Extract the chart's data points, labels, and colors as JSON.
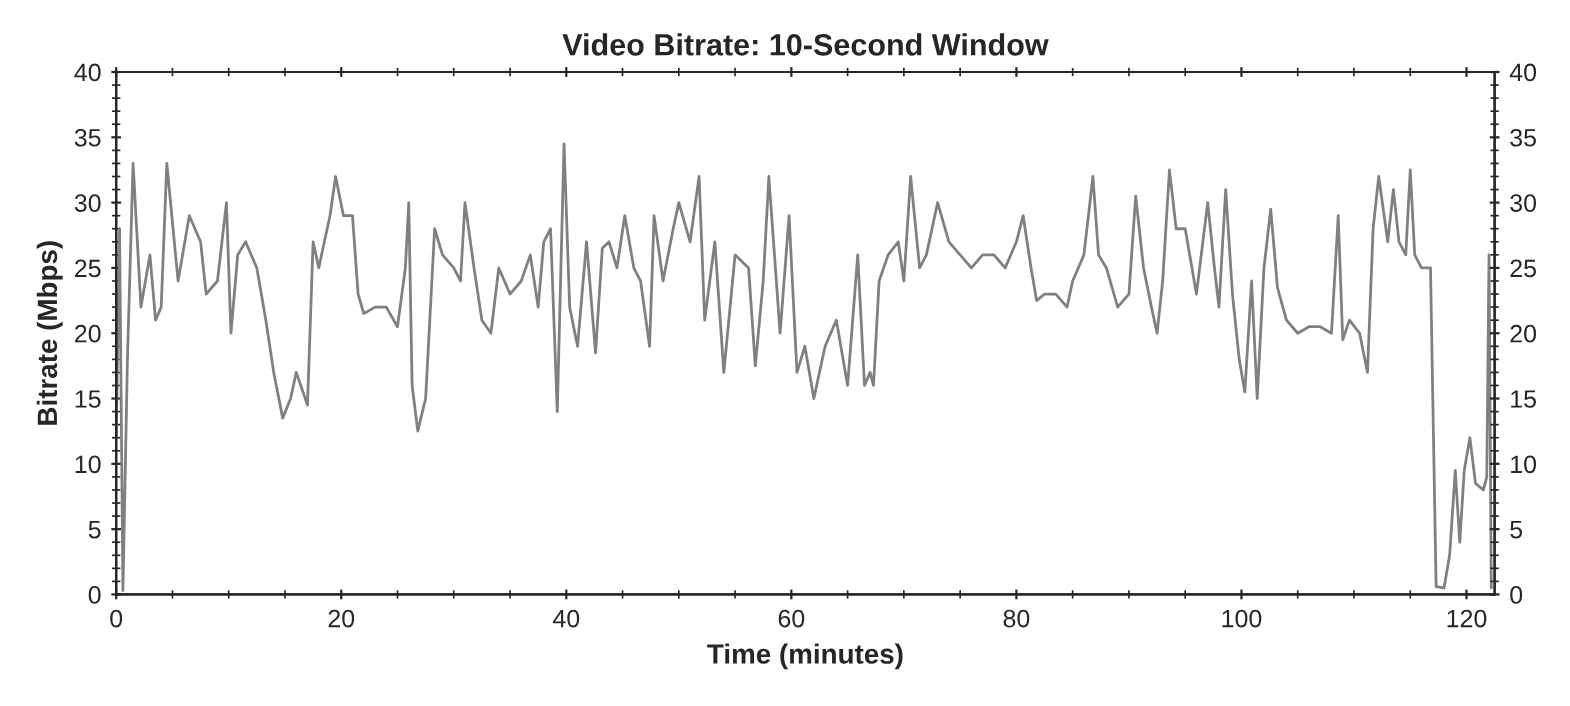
{
  "chart_data": {
    "type": "line",
    "title": "Video Bitrate: 10-Second Window",
    "xlabel": "Time (minutes)",
    "ylabel": "Bitrate (Mbps)",
    "xlim": [
      0,
      122.5
    ],
    "xticks": [
      0,
      20,
      40,
      60,
      80,
      100,
      120
    ],
    "ylim": [
      0,
      40
    ],
    "yticks": [
      0,
      5,
      10,
      15,
      20,
      25,
      30,
      35,
      40
    ],
    "y2lim": [
      0,
      40
    ],
    "y2ticks": [
      0,
      5,
      10,
      15,
      20,
      25,
      30,
      35,
      40
    ],
    "grid": false,
    "marker": "none",
    "line_style": "solid",
    "series": [
      {
        "color": "#808080",
        "x": [
          0.0,
          0.3,
          0.6,
          1.0,
          1.5,
          2.2,
          3,
          3.5,
          4,
          4.5,
          5.5,
          6.5,
          7.5,
          8,
          9,
          9.8,
          10.2,
          10.8,
          11.5,
          12.5,
          13.3,
          14,
          14.8,
          15.5,
          16,
          17,
          17.5,
          18,
          19,
          19.5,
          20.2,
          21,
          21.5,
          22,
          23,
          24,
          25,
          25.7,
          26,
          26.3,
          26.8,
          27.5,
          28.3,
          29,
          30,
          30.6,
          31,
          31.8,
          32.5,
          33.3,
          34,
          35,
          36,
          36.8,
          37.5,
          38,
          38.6,
          39.2,
          39.8,
          40.3,
          41,
          41.8,
          42.6,
          43.2,
          43.8,
          44.5,
          45.2,
          46,
          46.6,
          47.4,
          47.8,
          48.6,
          49.5,
          50,
          51,
          51.8,
          52.3,
          53.2,
          54,
          55,
          56.2,
          56.8,
          57.5,
          58,
          59,
          59.8,
          60.5,
          61.2,
          62,
          63,
          64,
          65,
          65.9,
          66.5,
          67,
          67.3,
          67.8,
          68.6,
          69.5,
          70,
          70.6,
          71.4,
          72,
          73,
          74,
          75,
          76,
          77,
          78,
          79,
          80,
          80.6,
          81.3,
          81.8,
          82.5,
          83.5,
          84.5,
          85,
          86,
          86.8,
          87.3,
          88,
          89,
          90,
          90.6,
          91.3,
          92,
          92.5,
          93,
          93.6,
          94.2,
          95,
          96,
          97,
          97.6,
          98,
          98.6,
          99.2,
          99.8,
          100.3,
          100.9,
          101.4,
          102,
          102.6,
          103.2,
          104,
          105,
          106,
          107,
          108,
          108.6,
          109,
          109.6,
          110.5,
          111.2,
          111.7,
          112.2,
          113,
          113.5,
          114,
          114.6,
          115,
          115.4,
          116,
          116.8,
          117.3,
          118,
          118.5,
          119,
          119.4,
          119.8,
          120.3,
          120.8,
          121.5,
          121.8,
          122.0,
          122.2
        ],
        "values": [
          12,
          28,
          0.3,
          18,
          33,
          22,
          26,
          21,
          22,
          33,
          24,
          29,
          27,
          23,
          24,
          30,
          20,
          26,
          27,
          25,
          21,
          17,
          13.5,
          15,
          17,
          14.5,
          27,
          25,
          29,
          32,
          29,
          29,
          23,
          21.5,
          22,
          22,
          20.5,
          25,
          30,
          16,
          12.5,
          15,
          28,
          26,
          25,
          24,
          30,
          25,
          21,
          20,
          25,
          23,
          24,
          26,
          22,
          27,
          28,
          14,
          34.5,
          22,
          19,
          27,
          18.5,
          26.5,
          27,
          25,
          29,
          25,
          24,
          19,
          29,
          24,
          28,
          30,
          27,
          32,
          21,
          27,
          17,
          26,
          25,
          17.5,
          24,
          32,
          20,
          29,
          17,
          19,
          15,
          19,
          21,
          16,
          26,
          16,
          17,
          16,
          24,
          26,
          27,
          24,
          32,
          25,
          26,
          30,
          27,
          26,
          25,
          26,
          26,
          25,
          27,
          29,
          25,
          22.5,
          23,
          23,
          22,
          24,
          26,
          32,
          26,
          25,
          22,
          23,
          30.5,
          25,
          22,
          20,
          24,
          32.5,
          28,
          28,
          23,
          30,
          25,
          22,
          31,
          23,
          18,
          15.5,
          24,
          15,
          25,
          29.5,
          23.5,
          21,
          20,
          20.5,
          20.5,
          20,
          29,
          19.5,
          21,
          20,
          17,
          28,
          32,
          27,
          31,
          27,
          26,
          32.5,
          26,
          25,
          25,
          0.6,
          0.5,
          3,
          9.5,
          4,
          9.5,
          12,
          8.5,
          8,
          9,
          26,
          0.5
        ]
      }
    ]
  }
}
